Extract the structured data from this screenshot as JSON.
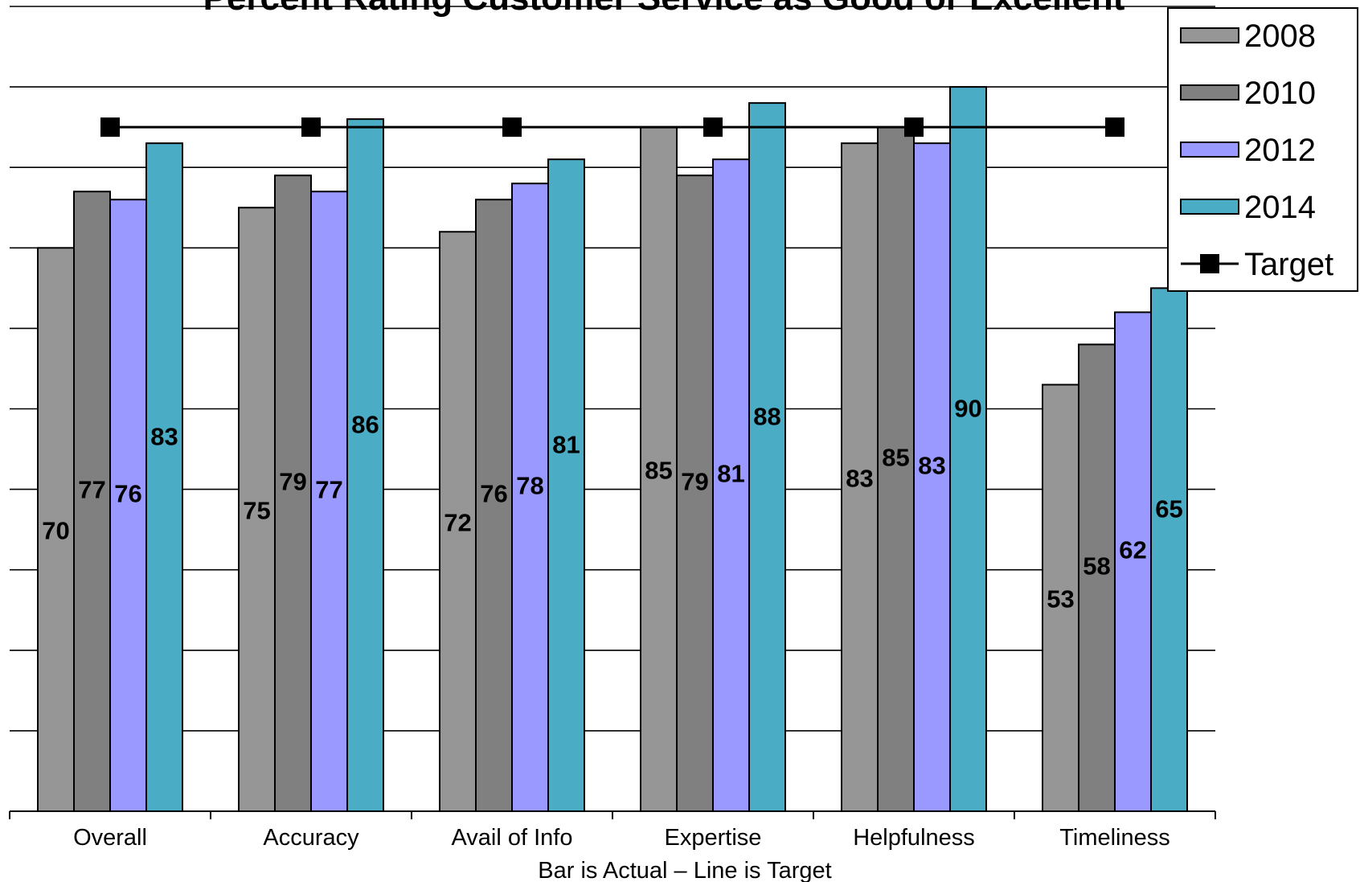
{
  "chart_data": {
    "type": "bar",
    "title": "Percent Rating Customer Service as Good or Excellent",
    "xlabel": "Bar is Actual – Line is Target",
    "ylabel": "",
    "ylim": [
      0,
      100
    ],
    "grid": true,
    "legend_position": "top-right",
    "categories": [
      "Overall",
      "Accuracy",
      "Avail of Info",
      "Expertise",
      "Helpfulness",
      "Timeliness"
    ],
    "series": [
      {
        "name": "2008",
        "type": "bar",
        "color": "#969696",
        "values": [
          70,
          75,
          72,
          85,
          83,
          53
        ]
      },
      {
        "name": "2010",
        "type": "bar",
        "color": "#808080",
        "values": [
          77,
          79,
          76,
          79,
          85,
          58
        ]
      },
      {
        "name": "2012",
        "type": "bar",
        "color": "#9999ff",
        "values": [
          76,
          77,
          78,
          81,
          83,
          62
        ]
      },
      {
        "name": "2014",
        "type": "bar",
        "color": "#4bacc6",
        "values": [
          83,
          86,
          81,
          88,
          90,
          65
        ]
      },
      {
        "name": "Target",
        "type": "line",
        "color": "#000000",
        "marker": "square",
        "values": [
          85,
          85,
          85,
          85,
          85,
          85
        ]
      }
    ]
  }
}
